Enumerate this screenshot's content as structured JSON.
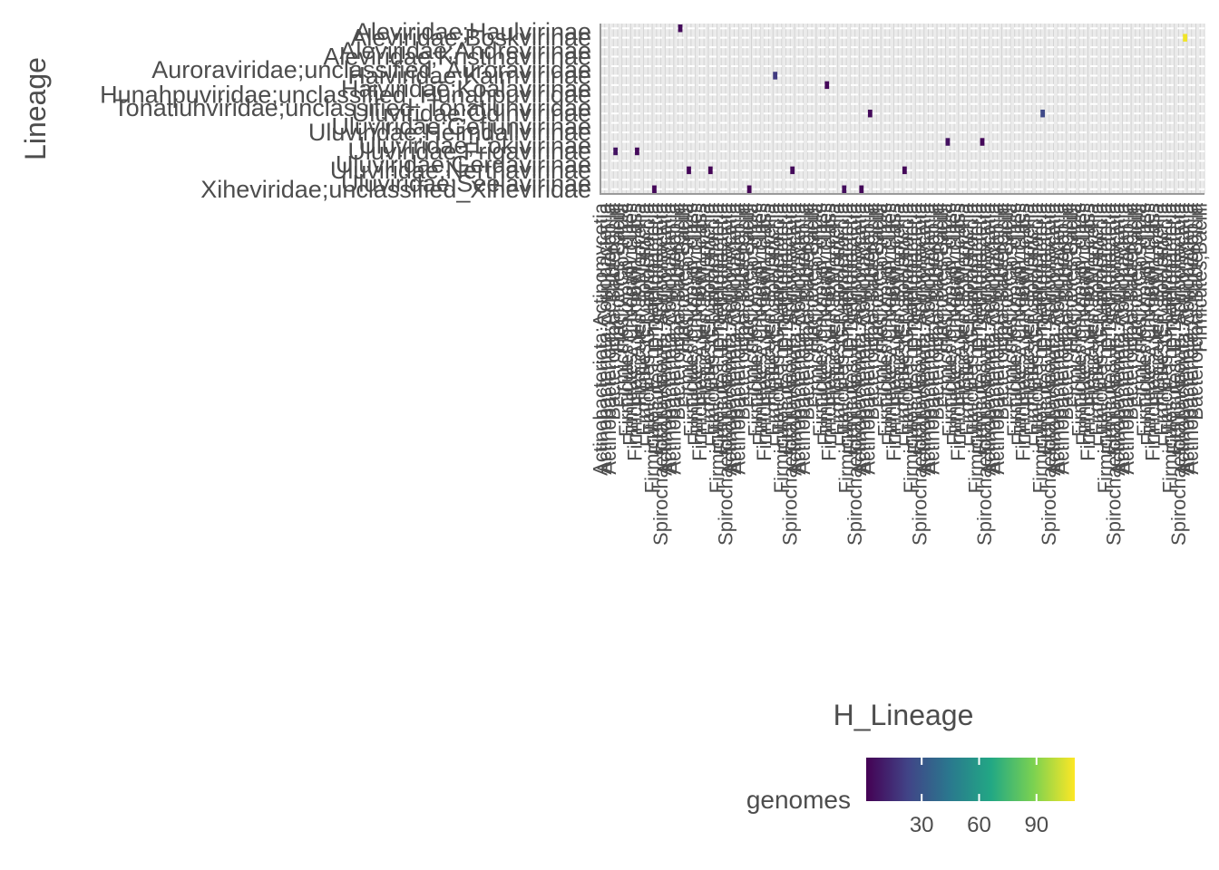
{
  "chart_data": {
    "type": "heatmap",
    "xlabel": "H_Lineage",
    "ylabel": "Lineage",
    "legend": {
      "title": "genomes",
      "placement": "bottom",
      "ticks": [
        30,
        60,
        90
      ],
      "range": [
        1,
        110
      ],
      "palette": [
        "#440154",
        "#414487",
        "#2a788e",
        "#22a884",
        "#7ad151",
        "#fde725"
      ]
    },
    "grid": true,
    "y_tick_labels": [
      "Xiheviridae;unclassified_Xiheviridae",
      "Uluviridae;Seelavirinae",
      "Uluviridae;Nerthavirinae",
      "Uluviridae;Gerdavirinae",
      "Uluviridae;Frigavirinae",
      "Uluviridae;Lokivirinae",
      "Uluviridae;Heimdallvirinae",
      "Uluviridae;Gefjunvirinae",
      "Uluviridae;Odinvirinae",
      "Tonatiuhviridae;unclassified_Tonatiuhviridae",
      "Hunahpuviridae;unclassified_Hunahpuviridae",
      "Haiviridae;Koalavirinae",
      "Haiviridae;Kaimvirinae",
      "Auroraviridae;unclassified_Auroraviridae",
      "Aleviridae;Kristinavirinae",
      "Aleviridae;Andrevirinae",
      "Aleviridae;Boskvirinae",
      "Aleviridae;Haulvirinae"
    ],
    "x_tick_labels": [
      "Actinobacteriota;Actinomycetia",
      "Actinobacteriota;Coriobacteriia",
      "Actinobacteriota;Acidimicrobiia",
      "Bacteroidota;Bacteroidia",
      "Firmicutes;Bacilli",
      "Firmicutes_A;Clostridia",
      "Firmicutes;unknown_class",
      "Firmicutes_C;Negativicutes",
      "Firmicutes_A;unknown_class",
      "Firmicutes_B;Moorellia",
      "Firmicutes;Erysipelotrichia",
      "Firmicutes_G;Limnochordia",
      "Firmicutes_E;Thermaerobacteria",
      "Firmicutes_D;Dethiobacteria",
      "Spirochaetota;unknown_Spirochaetota"
    ],
    "cells": [
      {
        "x": 12,
        "y": 0,
        "v": 3
      },
      {
        "x": 34,
        "y": 0,
        "v": 2
      },
      {
        "x": 56,
        "y": 0,
        "v": 5
      },
      {
        "x": 60,
        "y": 0,
        "v": 3
      },
      {
        "x": 3,
        "y": 4,
        "v": 7
      },
      {
        "x": 8,
        "y": 4,
        "v": 4
      },
      {
        "x": 20,
        "y": 2,
        "v": 3
      },
      {
        "x": 25,
        "y": 2,
        "v": 2
      },
      {
        "x": 44,
        "y": 2,
        "v": 4
      },
      {
        "x": 70,
        "y": 2,
        "v": 3
      },
      {
        "x": 80,
        "y": 5,
        "v": 6
      },
      {
        "x": 88,
        "y": 5,
        "v": 3
      },
      {
        "x": 102,
        "y": 8,
        "v": 25
      },
      {
        "x": 62,
        "y": 8,
        "v": 4
      },
      {
        "x": 40,
        "y": 12,
        "v": 20
      },
      {
        "x": 135,
        "y": 16,
        "v": 108
      },
      {
        "x": 52,
        "y": 11,
        "v": 3
      },
      {
        "x": 18,
        "y": 17,
        "v": 4
      }
    ]
  }
}
